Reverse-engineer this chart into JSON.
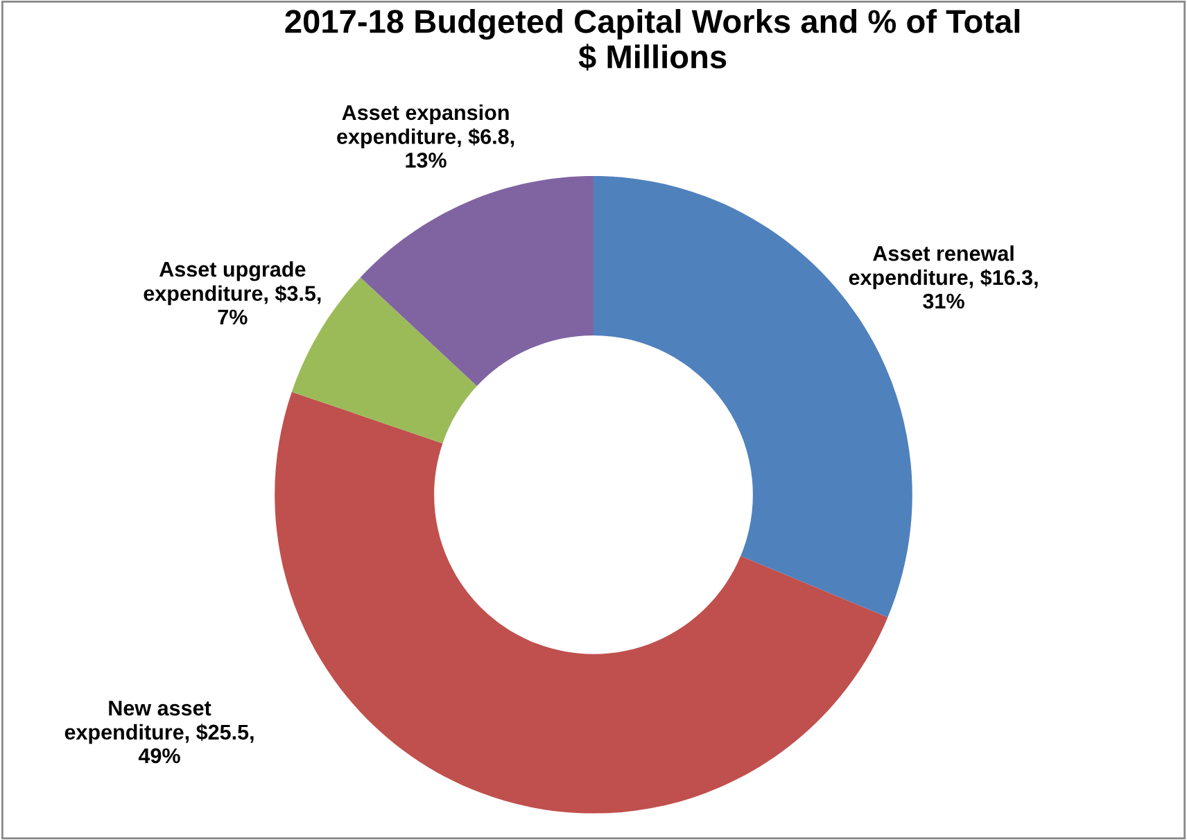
{
  "chart_data": {
    "type": "donut",
    "title": "2017-18 Budgeted Capital Works and % of Total\n$ Millions",
    "categories": [
      "Asset renewal\nexpenditure",
      "New asset\nexpenditure",
      "Asset upgrade\nexpenditure",
      "Asset expansion\nexpenditure"
    ],
    "values": [
      16.3,
      25.5,
      3.5,
      6.8
    ],
    "value_labels": [
      "$16.3,\n31%",
      "$25.5,\n49%",
      "$3.5,\n7%",
      "$6.8,\n13%"
    ],
    "colors": [
      "#4f81bd",
      "#c0504d",
      "#9bbb59",
      "#8064a2"
    ],
    "legend": false
  }
}
